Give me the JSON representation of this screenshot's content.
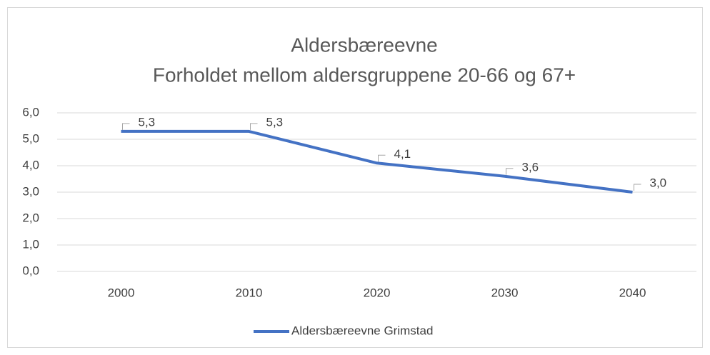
{
  "chart_data": {
    "type": "line",
    "title": "Aldersbæreevne",
    "subtitle": "Forholdet mellom aldersgruppene 20-66 og 67+",
    "categories": [
      "2000",
      "2010",
      "2020",
      "2030",
      "2040"
    ],
    "series": [
      {
        "name": "Aldersbæreevne Grimstad",
        "color": "#4472c4",
        "values": [
          5.3,
          5.3,
          4.1,
          3.6,
          3.0
        ],
        "value_labels": [
          "5,3",
          "5,3",
          "4,1",
          "3,6",
          "3,0"
        ]
      }
    ],
    "ylim": [
      0,
      6
    ],
    "yticks": [
      {
        "value": 0,
        "label": "0,0"
      },
      {
        "value": 1,
        "label": "1,0"
      },
      {
        "value": 2,
        "label": "2,0"
      },
      {
        "value": 3,
        "label": "3,0"
      },
      {
        "value": 4,
        "label": "4,0"
      },
      {
        "value": 5,
        "label": "5,0"
      },
      {
        "value": 6,
        "label": "6,0"
      }
    ],
    "grid": true,
    "legend": "bottom"
  }
}
